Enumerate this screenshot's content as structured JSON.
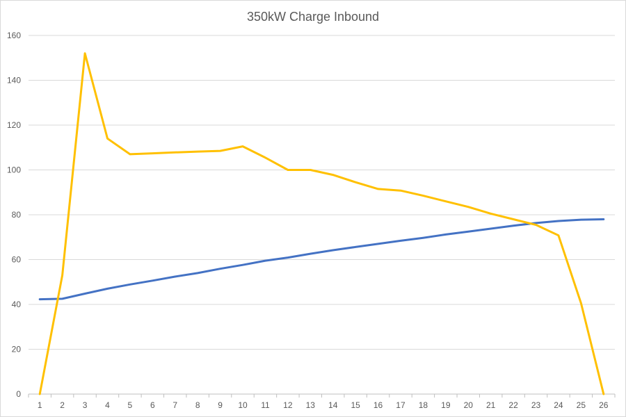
{
  "chart_data": {
    "type": "line",
    "title": "350kW Charge Inbound",
    "xlabel": "",
    "ylabel": "",
    "x": [
      1,
      2,
      3,
      4,
      5,
      6,
      7,
      8,
      9,
      10,
      11,
      12,
      13,
      14,
      15,
      16,
      17,
      18,
      19,
      20,
      21,
      22,
      23,
      24,
      25,
      26
    ],
    "ylim": [
      0,
      160
    ],
    "yticks": [
      0,
      20,
      40,
      60,
      80,
      100,
      120,
      140,
      160
    ],
    "grid": true,
    "legend": "none",
    "series": [
      {
        "color": "#4472c4",
        "values": [
          42.3,
          42.5,
          44.8,
          47.0,
          48.9,
          50.6,
          52.4,
          54.0,
          55.9,
          57.6,
          59.5,
          60.9,
          62.6,
          64.2,
          65.6,
          67.0,
          68.4,
          69.7,
          71.2,
          72.5,
          73.8,
          75.1,
          76.3,
          77.2,
          77.8,
          78.0
        ]
      },
      {
        "color": "#ffc000",
        "values": [
          0,
          53,
          152,
          114,
          107,
          107.4,
          107.8,
          108.2,
          108.5,
          110.5,
          105.5,
          100,
          100,
          97.8,
          94.5,
          91.5,
          90.8,
          88.5,
          86,
          83.5,
          80.5,
          78,
          75.5,
          70.8,
          40.5,
          0
        ]
      }
    ]
  }
}
